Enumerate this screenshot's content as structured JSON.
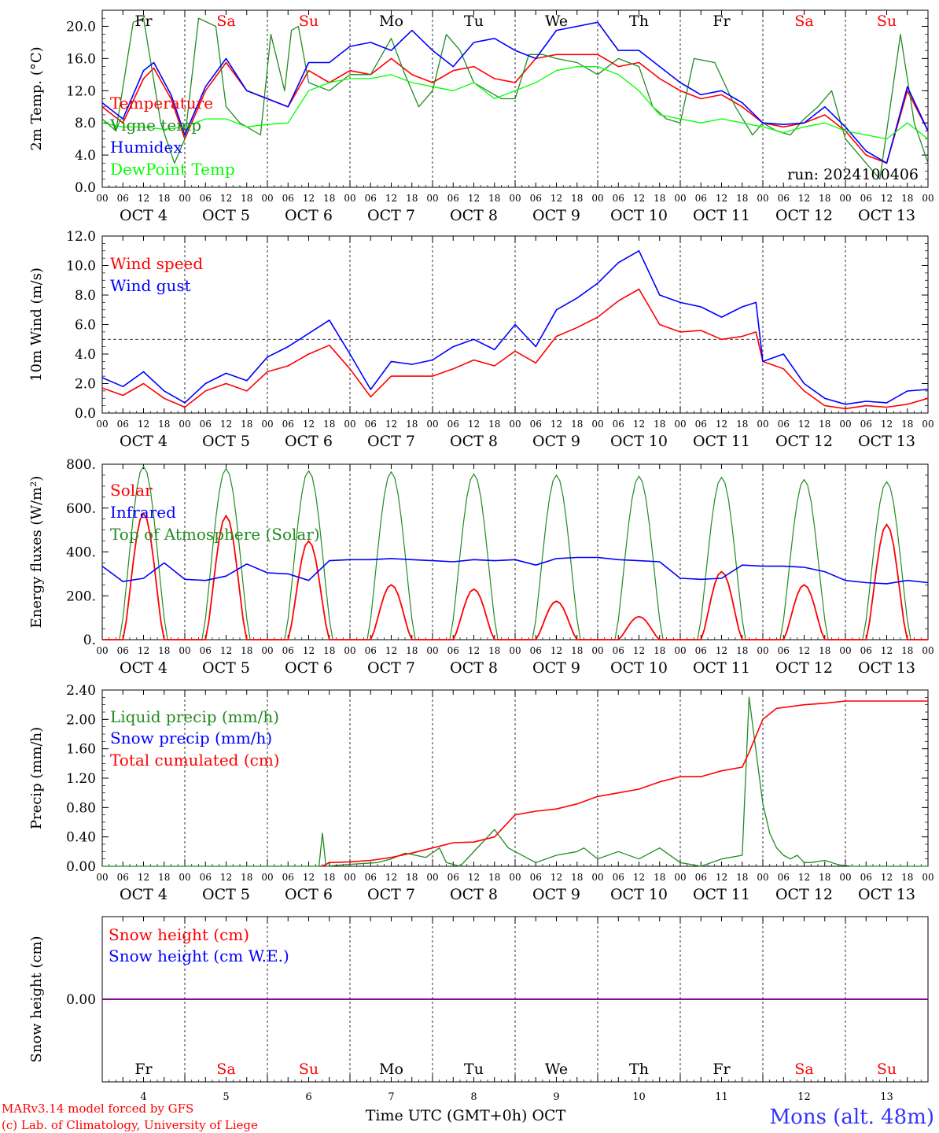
{
  "colors": {
    "red": "#ff0000",
    "dark_green": "#228b22",
    "blue": "#0000ff",
    "light_green": "#00ff00",
    "purple": "#800080",
    "black": "#000000",
    "location_blue": "#3333ff"
  },
  "footer": {
    "model_line1": "MARv3.14 model forced by GFS",
    "model_line2": "(c) Lab. of Climatology, University of Liege",
    "xlabel": "Time UTC (GMT+0h) OCT",
    "location": "Mons (alt. 48m)"
  },
  "days": {
    "weekday": [
      "Fr",
      "Sa",
      "Su",
      "Mo",
      "Tu",
      "We",
      "Th",
      "Fr",
      "Sa",
      "Su"
    ],
    "weekend_flag": [
      false,
      true,
      true,
      false,
      false,
      false,
      false,
      false,
      true,
      true
    ],
    "date_labels": [
      "OCT  4",
      "OCT  5",
      "OCT  6",
      "OCT  7",
      "OCT  8",
      "OCT  9",
      "OCT 10",
      "OCT 11",
      "OCT 12",
      "OCT 13"
    ],
    "bottom_numbers": [
      "4",
      "5",
      "6",
      "7",
      "8",
      "9",
      "10",
      "11",
      "12",
      "13"
    ],
    "hour_ticks": [
      "00",
      "06",
      "12",
      "18"
    ]
  },
  "chart_data": [
    {
      "type": "line",
      "ylabel": "2m Temp. (°C)",
      "ylim": [
        0,
        22
      ],
      "yticks": [
        "0.0",
        "4.0",
        "8.0",
        "12.0",
        "16.0",
        "20.0"
      ],
      "annotation": "run: 2024100406",
      "x_unit": "hours since Oct 4 00 UTC",
      "legend": [
        "Temperature",
        "Vigne temp",
        "Humidex",
        "DewPoint Temp"
      ],
      "series": [
        {
          "name": "Temperature",
          "color": "red",
          "x": [
            0,
            6,
            12,
            15,
            20,
            24,
            30,
            36,
            42,
            48,
            54,
            60,
            66,
            72,
            78,
            84,
            90,
            96,
            102,
            108,
            114,
            120,
            126,
            132,
            138,
            144,
            150,
            156,
            162,
            168,
            174,
            180,
            186,
            192,
            198,
            204,
            210,
            216,
            222,
            228,
            234,
            240
          ],
          "y": [
            10,
            8,
            13.5,
            14.8,
            11,
            6,
            12,
            15.5,
            12,
            11,
            10,
            14.5,
            13,
            14.5,
            14,
            16,
            14,
            13,
            14.5,
            15,
            13.5,
            13,
            16,
            16.5,
            16.5,
            16.5,
            15,
            15.5,
            13.5,
            12,
            11,
            11.5,
            10,
            8,
            7.5,
            8,
            9,
            7,
            4,
            3,
            12,
            7
          ]
        },
        {
          "name": "Vigne temp",
          "color": "dark_green",
          "x": [
            0,
            4,
            9,
            12,
            17,
            21,
            24,
            28,
            33,
            36,
            40,
            46,
            49,
            53,
            55,
            57,
            60,
            66,
            72,
            78,
            84,
            88,
            92,
            96,
            100,
            104,
            108,
            112,
            116,
            120,
            124,
            128,
            132,
            138,
            144,
            150,
            156,
            160,
            164,
            168,
            172,
            178,
            184,
            189,
            192,
            196,
            200,
            204,
            208,
            212,
            216,
            220,
            226,
            232,
            236,
            240
          ],
          "y": [
            8.5,
            7,
            20.5,
            21,
            8,
            3,
            6,
            21,
            20,
            10,
            8,
            6.5,
            19,
            12,
            19.5,
            20,
            13,
            12,
            14,
            14,
            18.5,
            14,
            10,
            12,
            19,
            17,
            13,
            12,
            11,
            11,
            16.5,
            16.5,
            16,
            15.5,
            14,
            16,
            15,
            10,
            8.5,
            8,
            16,
            15.5,
            10,
            6.5,
            8,
            7,
            6.5,
            8.5,
            10,
            12,
            6,
            4,
            1,
            19,
            8,
            3
          ]
        },
        {
          "name": "Humidex",
          "color": "blue",
          "x": [
            0,
            6,
            12,
            15,
            20,
            24,
            30,
            36,
            42,
            48,
            54,
            60,
            66,
            72,
            78,
            84,
            90,
            96,
            102,
            108,
            114,
            120,
            126,
            132,
            138,
            144,
            150,
            156,
            162,
            168,
            174,
            180,
            186,
            192,
            198,
            204,
            210,
            216,
            222,
            228,
            234,
            240
          ],
          "y": [
            10.5,
            8.5,
            14.5,
            15.5,
            11.5,
            6.5,
            12.5,
            16,
            12,
            11,
            10,
            15.5,
            15.5,
            17.5,
            18,
            17,
            19.5,
            17,
            15,
            18,
            18.5,
            17,
            16,
            19.5,
            20,
            20.5,
            17,
            17,
            15,
            13,
            11.5,
            12,
            10.5,
            8,
            7.8,
            8,
            10,
            7.5,
            4.5,
            3,
            12.5,
            7
          ]
        },
        {
          "name": "DewPoint Temp",
          "color": "light_green",
          "x": [
            0,
            6,
            12,
            18,
            24,
            30,
            36,
            42,
            48,
            54,
            60,
            66,
            72,
            78,
            84,
            90,
            96,
            102,
            108,
            114,
            120,
            126,
            132,
            138,
            144,
            150,
            156,
            162,
            168,
            174,
            180,
            186,
            192,
            198,
            204,
            210,
            216,
            222,
            228,
            234,
            240
          ],
          "y": [
            8,
            7.5,
            7.5,
            7.2,
            7.5,
            8.5,
            8.5,
            7.5,
            7.8,
            8,
            12,
            13,
            13.5,
            13.5,
            14,
            13,
            12.5,
            12,
            13,
            11,
            12,
            13,
            14.5,
            15,
            15,
            14,
            12,
            9,
            8.5,
            8,
            8.5,
            8,
            7.5,
            6.8,
            7.5,
            8,
            7,
            6.5,
            6,
            8,
            6
          ]
        }
      ]
    },
    {
      "type": "line",
      "ylabel": "10m Wind (m/s)",
      "ylim": [
        0,
        12
      ],
      "yticks": [
        "0.0",
        "2.0",
        "4.0",
        "6.0",
        "8.0",
        "10.0",
        "12.0"
      ],
      "reference_line": 5,
      "legend": [
        "Wind speed",
        "Wind gust"
      ],
      "series": [
        {
          "name": "Wind speed",
          "color": "red",
          "x": [
            0,
            6,
            12,
            18,
            24,
            30,
            36,
            42,
            48,
            54,
            60,
            66,
            72,
            78,
            84,
            90,
            96,
            102,
            108,
            114,
            120,
            126,
            132,
            138,
            144,
            150,
            156,
            162,
            168,
            174,
            180,
            186,
            190,
            192,
            198,
            204,
            210,
            216,
            222,
            228,
            234,
            240
          ],
          "y": [
            1.7,
            1.2,
            2,
            1,
            0.4,
            1.5,
            2,
            1.5,
            2.8,
            3.2,
            4,
            4.6,
            3,
            1.1,
            2.5,
            2.5,
            2.5,
            3,
            3.6,
            3.2,
            4.2,
            3.4,
            5.2,
            5.8,
            6.5,
            7.6,
            8.4,
            6,
            5.5,
            5.6,
            5,
            5.2,
            5.5,
            3.5,
            3,
            1.5,
            0.5,
            0.3,
            0.5,
            0.4,
            0.6,
            1
          ]
        },
        {
          "name": "Wind gust",
          "color": "blue",
          "x": [
            0,
            6,
            12,
            18,
            24,
            30,
            36,
            42,
            48,
            54,
            60,
            66,
            72,
            78,
            84,
            90,
            96,
            102,
            108,
            114,
            120,
            126,
            132,
            138,
            144,
            150,
            156,
            162,
            168,
            174,
            180,
            186,
            190,
            192,
            198,
            204,
            210,
            216,
            222,
            228,
            234,
            240
          ],
          "y": [
            2.4,
            1.8,
            2.8,
            1.5,
            0.7,
            2,
            2.7,
            2.2,
            3.8,
            4.5,
            5.4,
            6.3,
            4,
            1.6,
            3.5,
            3.3,
            3.6,
            4.5,
            5,
            4.3,
            6,
            4.5,
            7,
            7.8,
            8.8,
            10.2,
            11,
            8,
            7.5,
            7.2,
            6.5,
            7.2,
            7.5,
            3.5,
            4,
            2,
            1,
            0.6,
            0.8,
            0.7,
            1.5,
            1.6
          ]
        }
      ]
    },
    {
      "type": "line",
      "ylabel": "Energy fluxes (W/m²)",
      "ylim": [
        0,
        800
      ],
      "yticks": [
        "0.",
        "200.",
        "400.",
        "600.",
        "800."
      ],
      "legend": [
        "Solar",
        "Infrared",
        "Top of Atmosphere (Solar)"
      ],
      "solar_noon_peaks": {
        "Solar": [
          575,
          565,
          450,
          250,
          230,
          175,
          105,
          310,
          250,
          525
        ],
        "Top of Atmosphere (Solar)": [
          790,
          780,
          770,
          765,
          755,
          750,
          745,
          740,
          730,
          720
        ]
      },
      "series": [
        {
          "name": "Infrared",
          "color": "blue",
          "x": [
            0,
            6,
            12,
            18,
            24,
            30,
            36,
            42,
            48,
            54,
            60,
            66,
            72,
            78,
            84,
            90,
            96,
            102,
            108,
            114,
            120,
            126,
            132,
            138,
            144,
            150,
            156,
            162,
            168,
            174,
            180,
            186,
            192,
            198,
            204,
            210,
            216,
            222,
            228,
            234,
            240
          ],
          "y": [
            335,
            265,
            280,
            350,
            275,
            270,
            290,
            345,
            305,
            300,
            270,
            360,
            365,
            365,
            370,
            365,
            360,
            355,
            365,
            360,
            365,
            340,
            370,
            375,
            375,
            365,
            360,
            355,
            280,
            275,
            280,
            340,
            335,
            335,
            330,
            310,
            270,
            260,
            255,
            270,
            260
          ]
        }
      ]
    },
    {
      "type": "line",
      "ylabel": "Precip (mm/h)",
      "ylim": [
        0,
        2.4
      ],
      "yticks": [
        "0.00",
        "0.40",
        "0.80",
        "1.20",
        "1.60",
        "2.00",
        "2.40"
      ],
      "legend": [
        "Liquid precip (mm/h)",
        "Snow precip (mm/h)",
        "Total cumulated (cm)"
      ],
      "series": [
        {
          "name": "Liquid precip (mm/h)",
          "color": "dark_green",
          "x": [
            0,
            63,
            64,
            65,
            70,
            80,
            84,
            88,
            94,
            98,
            100,
            104,
            110,
            114,
            118,
            124,
            126,
            132,
            138,
            140,
            144,
            150,
            156,
            162,
            168,
            174,
            180,
            186,
            188,
            192,
            194,
            196,
            198,
            200,
            202,
            204,
            206,
            210,
            214,
            218,
            222,
            240
          ],
          "y": [
            0,
            0,
            0.45,
            0,
            0.02,
            0.05,
            0.1,
            0.18,
            0.12,
            0.25,
            0.05,
            0,
            0.3,
            0.5,
            0.25,
            0.1,
            0.05,
            0.15,
            0.2,
            0.25,
            0.1,
            0.2,
            0.1,
            0.25,
            0.05,
            0,
            0.1,
            0.15,
            2.3,
            0.85,
            0.45,
            0.25,
            0.15,
            0.1,
            0.15,
            0.05,
            0.05,
            0.08,
            0.02,
            0,
            0,
            0
          ]
        },
        {
          "name": "Total cumulated (cm)",
          "color": "red",
          "x": [
            0,
            64,
            66,
            72,
            78,
            84,
            90,
            96,
            102,
            108,
            114,
            120,
            126,
            132,
            138,
            144,
            150,
            156,
            162,
            168,
            174,
            180,
            186,
            188,
            192,
            196,
            204,
            210,
            216,
            222,
            228,
            234,
            240
          ],
          "y": [
            null,
            0,
            0.05,
            0.06,
            0.08,
            0.12,
            0.18,
            0.25,
            0.32,
            0.33,
            0.4,
            0.7,
            0.75,
            0.78,
            0.85,
            0.95,
            1.0,
            1.05,
            1.15,
            1.22,
            1.22,
            1.3,
            1.35,
            1.55,
            2.0,
            2.15,
            2.2,
            2.22,
            2.25,
            2.25,
            2.25,
            2.25,
            2.25
          ]
        }
      ]
    },
    {
      "type": "line",
      "ylabel": "Snow height (cm)",
      "ylim": [
        -1,
        1
      ],
      "yticks": [
        "0.00"
      ],
      "legend": [
        "Snow height (cm)",
        "Snow height (cm W.E.)"
      ],
      "series": [
        {
          "name": "Snow height (cm)",
          "color": "red",
          "x": [
            0,
            240
          ],
          "y": [
            0,
            0
          ]
        },
        {
          "name": "Snow height (cm W.E.)",
          "color": "blue",
          "x": [
            0,
            240
          ],
          "y": [
            0,
            0
          ]
        }
      ]
    }
  ]
}
